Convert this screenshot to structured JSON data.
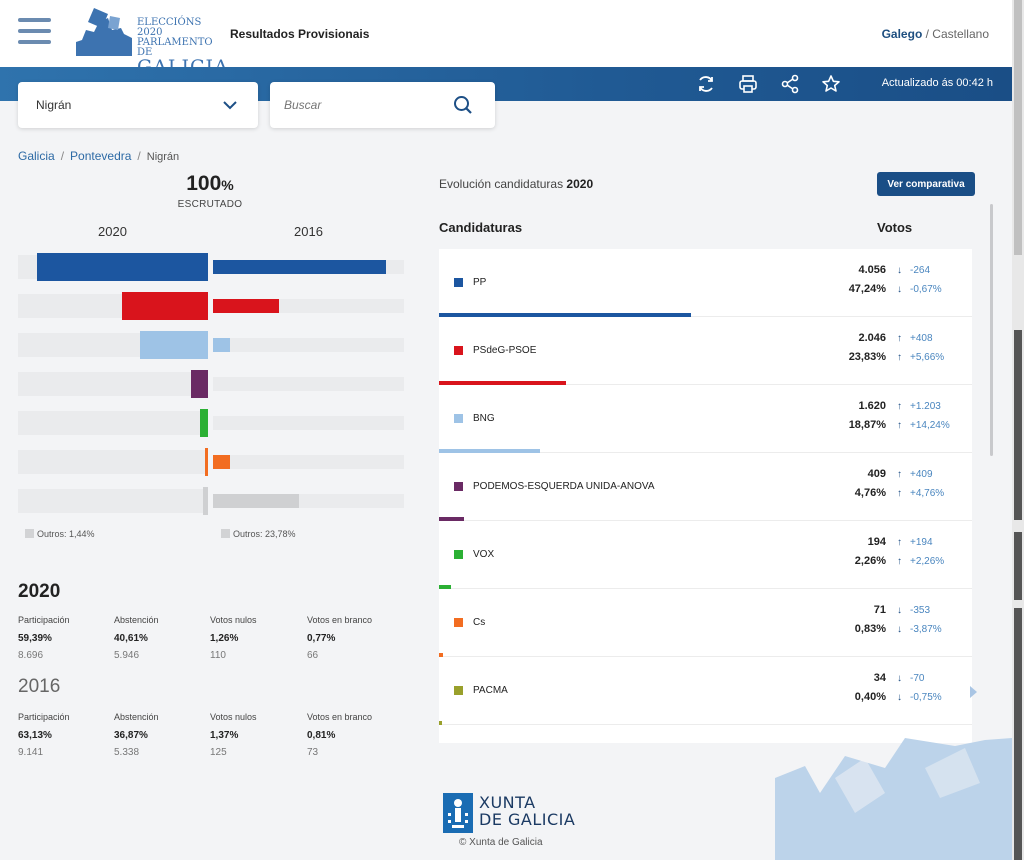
{
  "header": {
    "logo_line1": "ELECCIÓNS 2020",
    "logo_line2": "PARLAMENTO DE",
    "logo_line3": "GALICIA",
    "title": "Resultados Provisionais",
    "lang_active": "Galego",
    "lang_sep": " / ",
    "lang_other": "Castellano"
  },
  "toolbar": {
    "updated": "Actualizado ás 00:42 h"
  },
  "filters": {
    "municipality": "Nigrán",
    "search_placeholder": "Buscar"
  },
  "breadcrumb": [
    "Galicia",
    "Pontevedra",
    "Nigrán"
  ],
  "scrutiny": {
    "value": "100",
    "unit": "%",
    "label": "ESCRUTADO"
  },
  "comparison": {
    "year_left": "2020",
    "year_right": "2016",
    "bars": [
      {
        "color": "#1c56a0",
        "pct2020": 47.24,
        "pct2016": 47.91
      },
      {
        "color": "#d9141c",
        "pct2020": 23.83,
        "pct2016": 18.17
      },
      {
        "color": "#9ec3e6",
        "pct2020": 18.87,
        "pct2016": 4.63
      },
      {
        "color": "#6a2a64",
        "pct2020": 4.76,
        "pct2016": 0
      },
      {
        "color": "#2bb034",
        "pct2020": 2.26,
        "pct2016": 0
      },
      {
        "color": "#f26d21",
        "pct2020": 0.83,
        "pct2016": 4.7
      },
      {
        "color": "#cfd0d2",
        "pct2020": 1.44,
        "pct2016": 23.78
      }
    ],
    "others_2020": "Outros: 1,44%",
    "others_2016": "Outros: 23,78%"
  },
  "stats": [
    {
      "year": "2020",
      "items": [
        {
          "label": "Participación",
          "pct": "59,39%",
          "count": "8.696"
        },
        {
          "label": "Abstención",
          "pct": "40,61%",
          "count": "5.946"
        },
        {
          "label": "Votos nulos",
          "pct": "1,26%",
          "count": "110"
        },
        {
          "label": "Votos en branco",
          "pct": "0,77%",
          "count": "66"
        }
      ]
    },
    {
      "year": "2016",
      "items": [
        {
          "label": "Participación",
          "pct": "63,13%",
          "count": "9.141"
        },
        {
          "label": "Abstención",
          "pct": "36,87%",
          "count": "5.338"
        },
        {
          "label": "Votos nulos",
          "pct": "1,37%",
          "count": "125"
        },
        {
          "label": "Votos en branco",
          "pct": "0,81%",
          "count": "73"
        }
      ]
    }
  ],
  "evolution": {
    "label": "Evolución candidaturas",
    "year": "2020",
    "button": "Ver comparativa",
    "col_candidates": "Candidaturas",
    "col_votes": "Votos"
  },
  "candidates": [
    {
      "name": "PP",
      "color": "#1c56a0",
      "votes": "4.056",
      "pct": "47,24%",
      "dvotes": "-264",
      "dpct": "-0,67%",
      "up_votes": false,
      "up_pct": false,
      "share": 47.24
    },
    {
      "name": "PSdeG-PSOE",
      "color": "#d9141c",
      "votes": "2.046",
      "pct": "23,83%",
      "dvotes": "+408",
      "dpct": "+5,66%",
      "up_votes": true,
      "up_pct": true,
      "share": 23.83
    },
    {
      "name": "BNG",
      "color": "#9ec3e6",
      "votes": "1.620",
      "pct": "18,87%",
      "dvotes": "+1.203",
      "dpct": "+14,24%",
      "up_votes": true,
      "up_pct": true,
      "share": 18.87
    },
    {
      "name": "PODEMOS-ESQUERDA UNIDA-ANOVA",
      "color": "#6a2a64",
      "votes": "409",
      "pct": "4,76%",
      "dvotes": "+409",
      "dpct": "+4,76%",
      "up_votes": true,
      "up_pct": true,
      "share": 4.76
    },
    {
      "name": "VOX",
      "color": "#2bb034",
      "votes": "194",
      "pct": "2,26%",
      "dvotes": "+194",
      "dpct": "+2,26%",
      "up_votes": true,
      "up_pct": true,
      "share": 2.26
    },
    {
      "name": "Cs",
      "color": "#f26d21",
      "votes": "71",
      "pct": "0,83%",
      "dvotes": "-353",
      "dpct": "-3,87%",
      "up_votes": false,
      "up_pct": false,
      "share": 0.83
    },
    {
      "name": "PACMA",
      "color": "#99a02b",
      "votes": "34",
      "pct": "0,40%",
      "dvotes": "-70",
      "dpct": "-0,75%",
      "up_votes": false,
      "up_pct": false,
      "share": 0.4
    }
  ],
  "footer": {
    "xunta_line1": "XUNTA",
    "xunta_line2": "DE GALICIA",
    "copyright": "Xunta de Galicia"
  }
}
